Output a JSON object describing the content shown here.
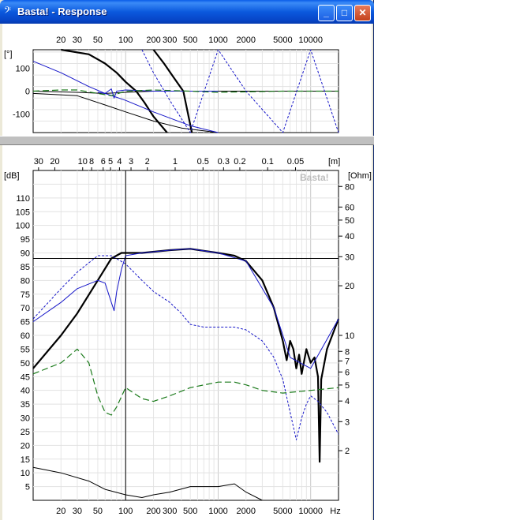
{
  "window": {
    "title": "Basta! - Response",
    "app_icon": "bass-clef-icon",
    "controls": {
      "minimize": "_",
      "maximize": "□",
      "close": "✕"
    }
  },
  "chart_data": [
    {
      "type": "line",
      "xscale": "log",
      "xlim": [
        10,
        20000
      ],
      "ylim": [
        -180,
        180
      ],
      "grid": true,
      "ylabel": "[°]",
      "x_ticks": [
        "20",
        "30",
        "50",
        "100",
        "200",
        "300",
        "500",
        "1000",
        "2000",
        "5000",
        "10000"
      ],
      "y_ticks": [
        "100",
        "0",
        "-100"
      ],
      "series": [
        {
          "style": "black-thick",
          "x": [
            20,
            40,
            60,
            80,
            100,
            130,
            160,
            200,
            280
          ],
          "y": [
            180,
            160,
            120,
            80,
            40,
            0,
            -50,
            -110,
            -180
          ]
        },
        {
          "style": "black-thick",
          "x": [
            200,
            260,
            330,
            420,
            520
          ],
          "y": [
            180,
            120,
            60,
            0,
            -180
          ]
        },
        {
          "style": "black-thin",
          "x": [
            10,
            30,
            60,
            100,
            200,
            400,
            1000,
            20000
          ],
          "y": [
            -10,
            -20,
            -60,
            -90,
            -130,
            -160,
            -180,
            -180
          ]
        },
        {
          "style": "black-thin",
          "x": [
            10,
            30,
            60,
            100,
            200,
            500,
            2000,
            20000
          ],
          "y": [
            0,
            -5,
            -10,
            -5,
            0,
            0,
            0,
            0
          ]
        },
        {
          "style": "blue-thin",
          "x": [
            10,
            20,
            40,
            60,
            100,
            200,
            500,
            1000
          ],
          "y": [
            130,
            80,
            20,
            -10,
            -40,
            -90,
            -150,
            -180
          ]
        },
        {
          "style": "blue-thin",
          "x": [
            50,
            60,
            70,
            75,
            80,
            100,
            200,
            1000
          ],
          "y": [
            -5,
            -10,
            10,
            -30,
            0,
            5,
            0,
            0
          ]
        },
        {
          "style": "green-dashed",
          "x": [
            10,
            20,
            30,
            50,
            70,
            100,
            200,
            500,
            1000,
            5000,
            20000
          ],
          "y": [
            0,
            5,
            5,
            -10,
            -20,
            0,
            5,
            0,
            -5,
            0,
            0
          ]
        },
        {
          "style": "blue-dashed",
          "x": [
            150,
            200,
            300,
            500,
            1000,
            2000,
            5000,
            10000,
            20000
          ],
          "y": [
            180,
            80,
            -40,
            -180,
            180,
            0,
            -180,
            180,
            -180
          ]
        }
      ]
    },
    {
      "type": "line",
      "xscale": "log",
      "xlim": [
        10,
        20000
      ],
      "ylim": [
        0,
        120
      ],
      "grid": true,
      "ylabel": "[dB]",
      "y2label": "[Ohm]",
      "x2label": "[m]",
      "watermark": "Basta!",
      "x_ticks": [
        "20",
        "30",
        "50",
        "100",
        "200",
        "300",
        "500",
        "1000",
        "2000",
        "5000",
        "10000",
        "Hz"
      ],
      "y_ticks": [
        "110",
        "105",
        "100",
        "95",
        "90",
        "85",
        "80",
        "75",
        "70",
        "65",
        "60",
        "55",
        "50",
        "45",
        "40",
        "35",
        "30",
        "25",
        "20",
        "15",
        "10",
        "5"
      ],
      "y2_ticks": [
        "80",
        "60",
        "50",
        "40",
        "30",
        "20",
        "10",
        "8",
        "7",
        "6",
        "5",
        "4",
        "3",
        "2"
      ],
      "x2_ticks": [
        "30",
        "20",
        "10",
        "8",
        "6",
        "5",
        "4",
        "3",
        "2",
        "1",
        "0.5",
        "0.3",
        "0.2",
        "0.1",
        "0.05"
      ],
      "cursor": {
        "x": 100,
        "y": 88
      },
      "series": [
        {
          "style": "black-thick",
          "x": [
            10,
            20,
            30,
            50,
            70,
            90,
            100,
            150,
            300,
            500,
            1000,
            1500,
            2000,
            3000,
            4000,
            5000,
            5500,
            6000,
            6500,
            7000,
            7500,
            8000,
            9000,
            10000,
            11000,
            12000,
            12500,
            13000,
            15000,
            20000
          ],
          "y": [
            48,
            60,
            68,
            80,
            88,
            90,
            90,
            90,
            91,
            91.5,
            90,
            89,
            87,
            80,
            70,
            58,
            51,
            58,
            55,
            48,
            53,
            46,
            55,
            50,
            52,
            45,
            14,
            44,
            55,
            66
          ]
        },
        {
          "style": "blue-thin",
          "x": [
            10,
            20,
            30,
            50,
            60,
            70,
            75,
            80,
            90,
            100,
            150,
            300,
            500,
            1000,
            2000,
            4000,
            6000,
            10000,
            20000
          ],
          "y": [
            65,
            72,
            77,
            80,
            79,
            72,
            69,
            76,
            84,
            89,
            90,
            91,
            91.5,
            90,
            87,
            70,
            52,
            48,
            66
          ]
        },
        {
          "style": "blue-dashed",
          "x": [
            10,
            20,
            30,
            50,
            70,
            100,
            150,
            200,
            300,
            400,
            500,
            700,
            1000,
            1500,
            2000,
            3000,
            4000,
            5000,
            6000,
            7000,
            8000,
            9000,
            10000,
            12000,
            15000,
            20000
          ],
          "y": [
            66,
            77,
            83,
            89,
            89,
            86,
            80,
            76,
            72,
            68,
            64,
            63,
            63,
            63,
            62,
            58,
            52,
            44,
            32,
            22,
            30,
            35,
            38,
            36,
            32,
            24
          ]
        },
        {
          "style": "green-dashed",
          "x": [
            10,
            20,
            30,
            40,
            50,
            60,
            70,
            80,
            100,
            150,
            200,
            300,
            500,
            1000,
            1500,
            2000,
            3000,
            5000,
            10000,
            20000
          ],
          "y": [
            46,
            50,
            55,
            50,
            38,
            32,
            31,
            34,
            41,
            37,
            36,
            38,
            41,
            43,
            43,
            42,
            40,
            39,
            40,
            41
          ]
        },
        {
          "style": "black-thin",
          "x": [
            10,
            20,
            40,
            60,
            100,
            150,
            200,
            300,
            500,
            1000,
            1500,
            2000,
            3000,
            5000
          ],
          "y": [
            12,
            10,
            7,
            4,
            2,
            1,
            2,
            3,
            5,
            5,
            6,
            3,
            0,
            0
          ]
        }
      ]
    }
  ]
}
